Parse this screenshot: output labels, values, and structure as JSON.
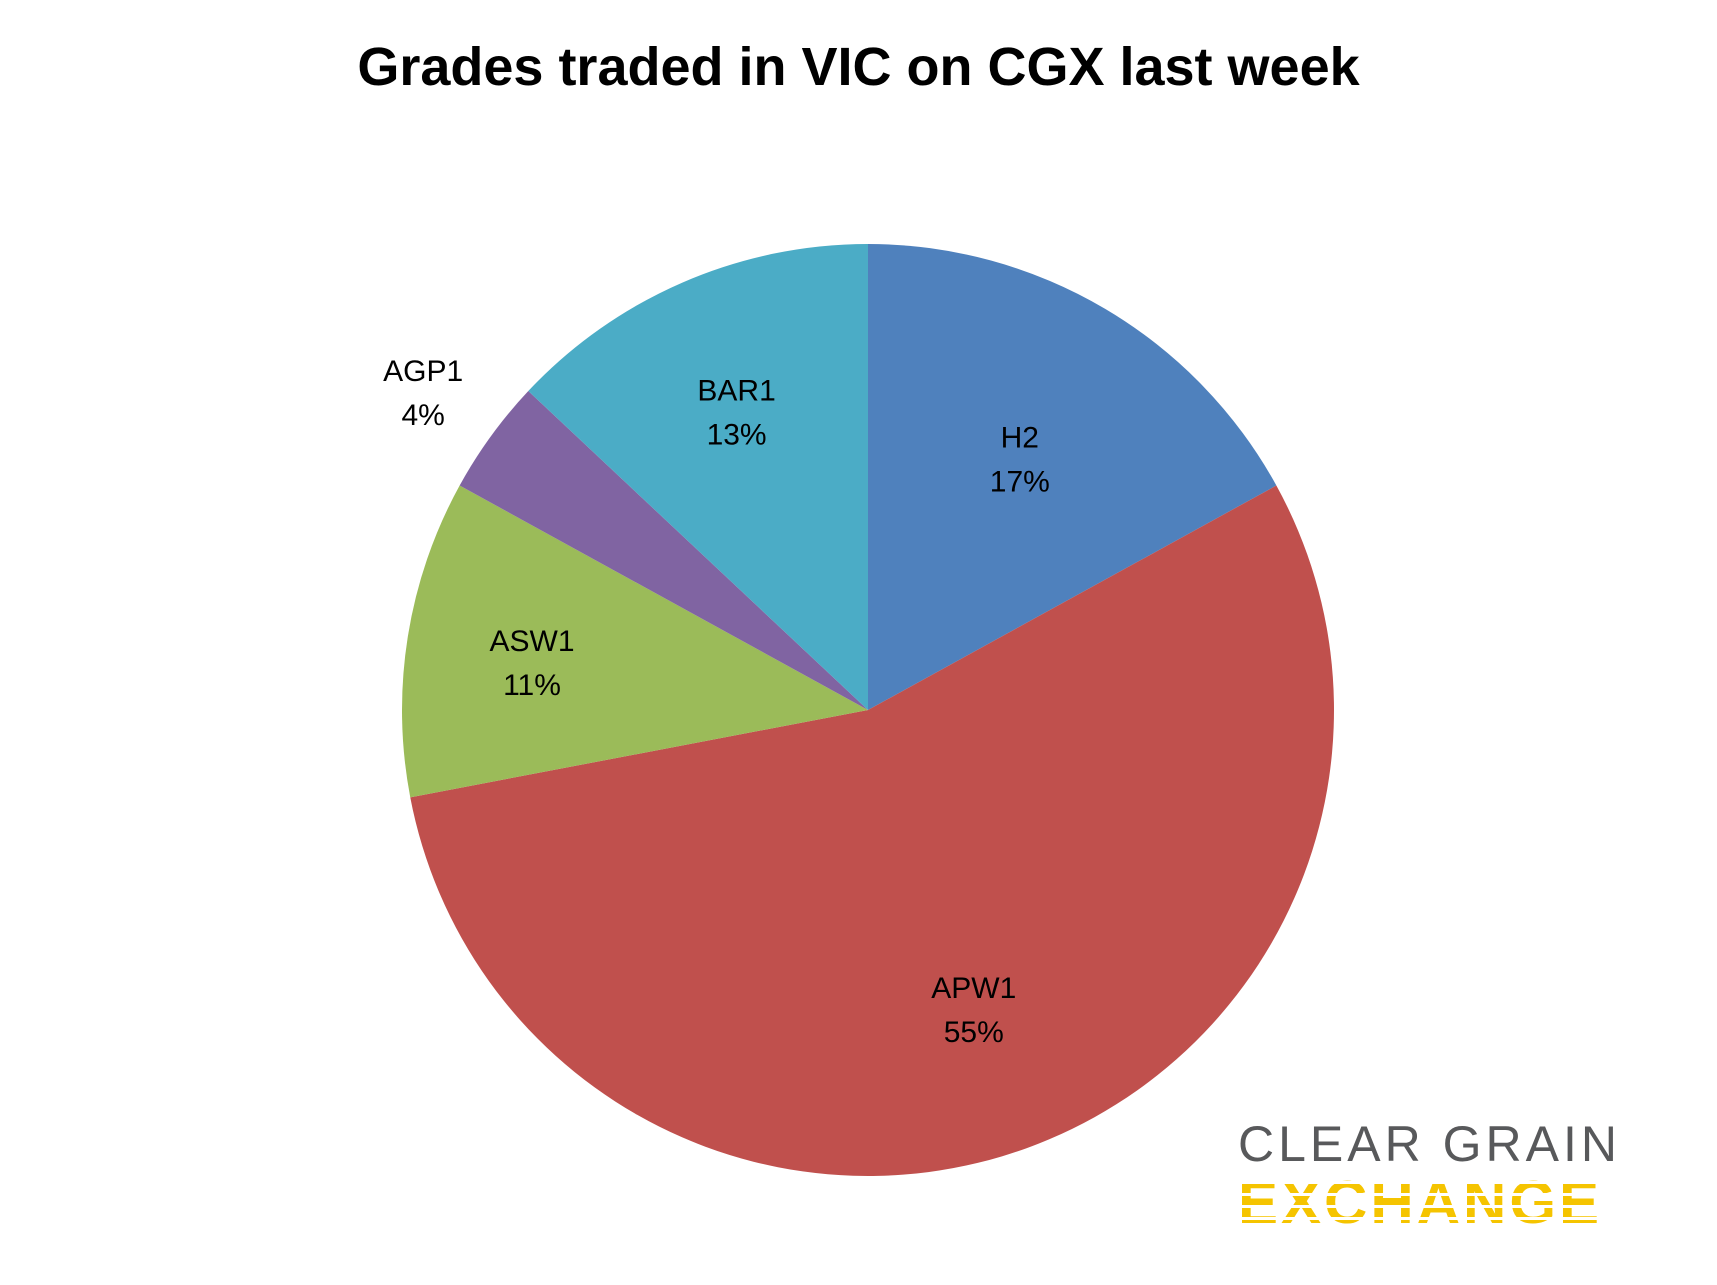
{
  "chart_data": {
    "type": "pie",
    "title": "Grades traded in VIC on CGX last week",
    "start_angle": "12 o'clock",
    "direction": "clockwise",
    "slices": [
      {
        "label": "H2",
        "percent_label": "17%",
        "value": 17,
        "color": "#4f81bd"
      },
      {
        "label": "APW1",
        "percent_label": "55%",
        "value": 55,
        "color": "#c0504d"
      },
      {
        "label": "ASW1",
        "percent_label": "11%",
        "value": 11,
        "color": "#9bbb59"
      },
      {
        "label": "AGP1",
        "percent_label": "4%",
        "value": 4,
        "color": "#8064a2"
      },
      {
        "label": "BAR1",
        "percent_label": "13%",
        "value": 13,
        "color": "#4bacc6"
      }
    ]
  },
  "logo": {
    "line1": "CLEAR GRAIN",
    "line2": "EXCHANGE"
  }
}
